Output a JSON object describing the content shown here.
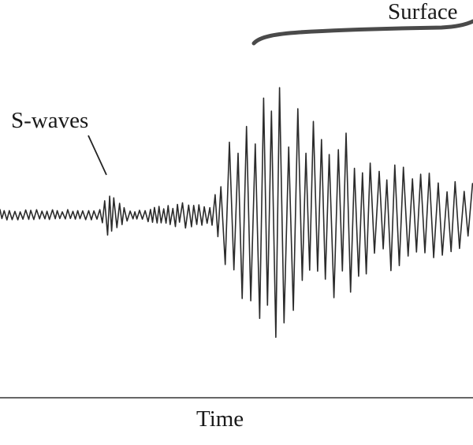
{
  "labels": {
    "s_waves": "S-waves",
    "surface": "Surface",
    "time_axis": "Time"
  },
  "colors": {
    "trace": "#2b2b2b",
    "bracket": "#4a4a4a",
    "axis": "#333333",
    "background": "#ffffff"
  }
}
